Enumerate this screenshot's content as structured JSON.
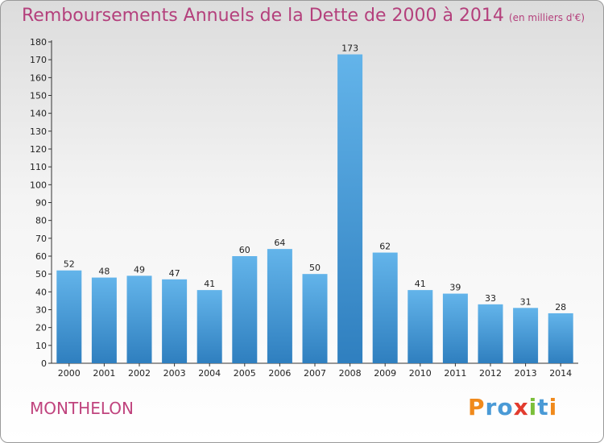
{
  "header": {
    "title": "Remboursements Annuels de la Dette de 2000 à 2014",
    "unit": "(en milliers d'€)"
  },
  "footer": {
    "place": "MONTHELON",
    "logo": {
      "letters": [
        "P",
        "r",
        "o",
        "x",
        "i",
        "t",
        "i"
      ],
      "colors": [
        "#f08a1c",
        "#4a9ad6",
        "#4a9ad6",
        "#e23b2e",
        "#7bbf3a",
        "#4a9ad6",
        "#f08a1c"
      ]
    }
  },
  "chart_data": {
    "type": "bar",
    "categories": [
      "2000",
      "2001",
      "2002",
      "2003",
      "2004",
      "2005",
      "2006",
      "2007",
      "2008",
      "2009",
      "2010",
      "2011",
      "2012",
      "2013",
      "2014"
    ],
    "values": [
      52,
      48,
      49,
      47,
      41,
      60,
      64,
      50,
      173,
      62,
      41,
      39,
      33,
      31,
      28
    ],
    "title": "Remboursements Annuels de la Dette de 2000 à 2014",
    "ylim": [
      0,
      180
    ],
    "yticks": [
      0,
      10,
      20,
      30,
      40,
      50,
      60,
      70,
      80,
      90,
      100,
      110,
      120,
      130,
      140,
      150,
      160,
      170,
      180
    ],
    "grid": false,
    "bar_color_top": "#63b4ea",
    "bar_color_bottom": "#2f7fbf"
  }
}
